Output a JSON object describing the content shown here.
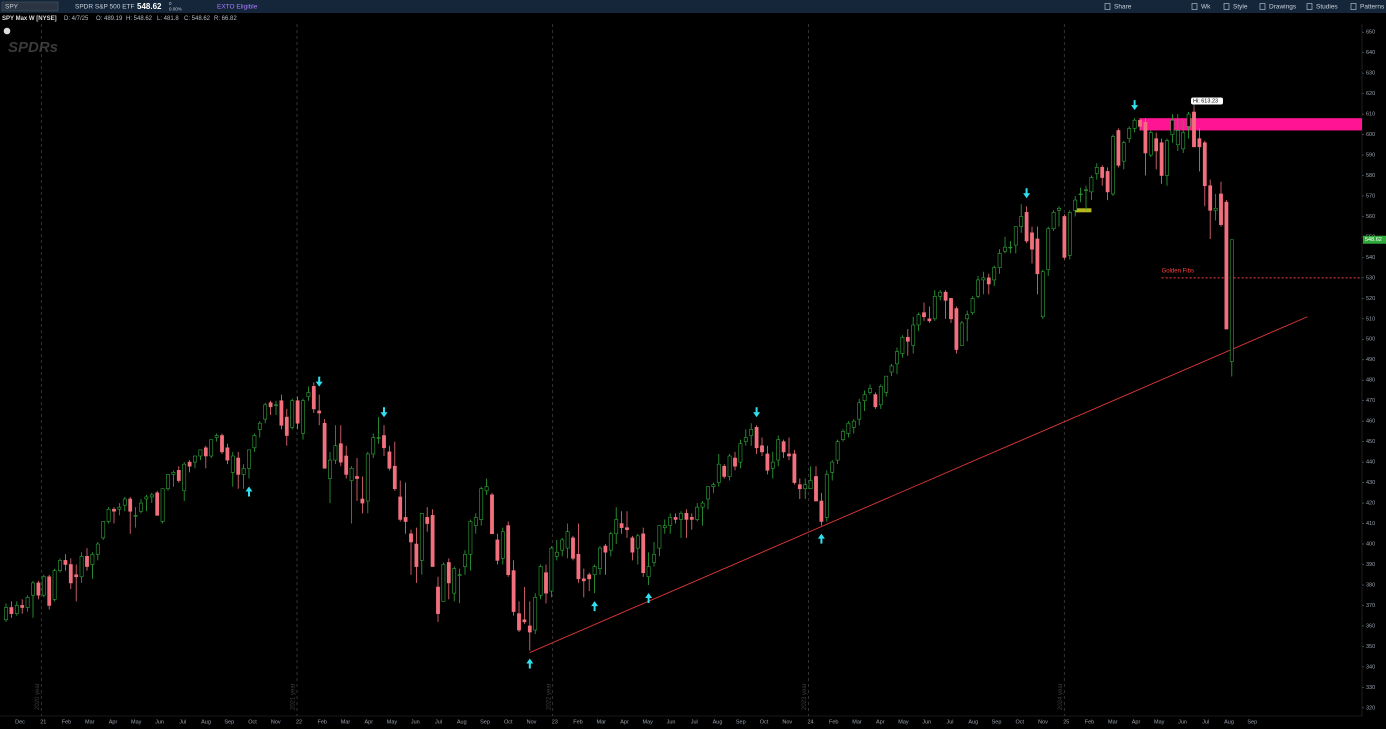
{
  "header": {
    "symbol": "SPY",
    "description": "SPDR S&P 500 ETF",
    "last": "548.62",
    "change": "0",
    "change_pct": "0.00%",
    "badge": "EXTO Eligible",
    "tools": [
      "Share",
      "Wk",
      "Style",
      "Drawings",
      "Studies",
      "Patterns"
    ]
  },
  "info_bar": {
    "title": "SPY Max W [NYSE]",
    "fields": [
      "D: 4/7/25",
      "O: 489.19",
      "H: 548.62",
      "L: 481.8",
      "C: 548.62",
      "R: 66.82"
    ]
  },
  "logo": "SPDRs",
  "chart_data": {
    "type": "candlestick",
    "up_color": "#2fa83a",
    "down_color": "#f2707e",
    "ylim": [
      316,
      654
    ],
    "yticks": [
      320,
      330,
      340,
      350,
      360,
      370,
      380,
      390,
      400,
      410,
      420,
      430,
      440,
      450,
      460,
      470,
      480,
      490,
      500,
      510,
      520,
      530,
      540,
      550,
      560,
      570,
      580,
      590,
      600,
      610,
      620,
      630,
      640,
      650
    ],
    "categories": [
      "Dec",
      "21",
      "Feb",
      "Mar",
      "Apr",
      "May",
      "Jun",
      "Jul",
      "Aug",
      "Sep",
      "Oct",
      "Nov",
      "22",
      "Feb",
      "Mar",
      "Apr",
      "May",
      "Jun",
      "Jul",
      "Aug",
      "Sep",
      "Oct",
      "Nov",
      "23",
      "Feb",
      "Mar",
      "Apr",
      "May",
      "Jun",
      "Jul",
      "Aug",
      "Sep",
      "Oct",
      "Nov",
      "24",
      "Feb",
      "Mar",
      "Apr",
      "May",
      "Jun",
      "Jul",
      "Aug",
      "Sep",
      "Oct",
      "Nov",
      "25",
      "Feb",
      "Mar",
      "Apr",
      "May",
      "Jun",
      "Jul",
      "Aug",
      "Sep"
    ],
    "year_labels": [
      "2020 year",
      "2021 year",
      "2022 year",
      "2023 year",
      "2024 year"
    ],
    "candles": [
      [
        363,
        371,
        362,
        369
      ],
      [
        369,
        372,
        364,
        366
      ],
      [
        366,
        372,
        365,
        370
      ],
      [
        370,
        373,
        366,
        369
      ],
      [
        369,
        375,
        367,
        374
      ],
      [
        375,
        382,
        364,
        381
      ],
      [
        381,
        382,
        373,
        375
      ],
      [
        375,
        385,
        374,
        384
      ],
      [
        384,
        385,
        368,
        370
      ],
      [
        373,
        388,
        372,
        387
      ],
      [
        387,
        393,
        386,
        392
      ],
      [
        392,
        395,
        387,
        390
      ],
      [
        390,
        393,
        378,
        381
      ],
      [
        385,
        390,
        372,
        384
      ],
      [
        384,
        396,
        381,
        394
      ],
      [
        394,
        398,
        387,
        389
      ],
      [
        390,
        396,
        383,
        395
      ],
      [
        395,
        401,
        392,
        400
      ],
      [
        403,
        411,
        402,
        411
      ],
      [
        411,
        418,
        410,
        417
      ],
      [
        417,
        418,
        410,
        416
      ],
      [
        417,
        420,
        414,
        418
      ],
      [
        419,
        423,
        416,
        422
      ],
      [
        422,
        423,
        405,
        416
      ],
      [
        414,
        418,
        408,
        414
      ],
      [
        416,
        422,
        415,
        420
      ],
      [
        422,
        424,
        416,
        423
      ],
      [
        423,
        425,
        420,
        424
      ],
      [
        425,
        426,
        414,
        414
      ],
      [
        411,
        427,
        410,
        427
      ],
      [
        427,
        434,
        426,
        434
      ],
      [
        434,
        436,
        428,
        435
      ],
      [
        436,
        438,
        430,
        431
      ],
      [
        426,
        440,
        421,
        439
      ],
      [
        440,
        441,
        435,
        438
      ],
      [
        440,
        443,
        437,
        443
      ],
      [
        443,
        446,
        441,
        446
      ],
      [
        447,
        448,
        437,
        443
      ],
      [
        443,
        451,
        442,
        451
      ],
      [
        452,
        454,
        450,
        453
      ],
      [
        453,
        454,
        444,
        445
      ],
      [
        447,
        449,
        439,
        441
      ],
      [
        435,
        445,
        428,
        443
      ],
      [
        442,
        445,
        427,
        434
      ],
      [
        434,
        439,
        427,
        437
      ],
      [
        437,
        446,
        432,
        446
      ],
      [
        447,
        454,
        445,
        453
      ],
      [
        456,
        460,
        452,
        459
      ],
      [
        461,
        469,
        459,
        468
      ],
      [
        469,
        470,
        463,
        467
      ],
      [
        468,
        470,
        463,
        468
      ],
      [
        470,
        473,
        456,
        458
      ],
      [
        462,
        466,
        448,
        453
      ],
      [
        457,
        471,
        456,
        470
      ],
      [
        470,
        472,
        456,
        459
      ],
      [
        454,
        471,
        451,
        470
      ],
      [
        472,
        477,
        470,
        474
      ],
      [
        477,
        479,
        464,
        466
      ],
      [
        465,
        473,
        458,
        464
      ],
      [
        459,
        461,
        437,
        437
      ],
      [
        432,
        445,
        420,
        441
      ],
      [
        441,
        458,
        439,
        448
      ],
      [
        449,
        458,
        438,
        440
      ],
      [
        443,
        448,
        432,
        434
      ],
      [
        431,
        438,
        410,
        437
      ],
      [
        433,
        442,
        421,
        432
      ],
      [
        422,
        433,
        415,
        420
      ],
      [
        421,
        445,
        415,
        444
      ],
      [
        444,
        454,
        442,
        452
      ],
      [
        452,
        462,
        449,
        452
      ],
      [
        453,
        458,
        443,
        447
      ],
      [
        445,
        448,
        436,
        437
      ],
      [
        438,
        450,
        426,
        427
      ],
      [
        423,
        431,
        411,
        412
      ],
      [
        413,
        430,
        405,
        411
      ],
      [
        405,
        407,
        385,
        401
      ],
      [
        400,
        408,
        381,
        389
      ],
      [
        392,
        415,
        385,
        415
      ],
      [
        413,
        418,
        406,
        410
      ],
      [
        414,
        417,
        389,
        389
      ],
      [
        379,
        384,
        362,
        366
      ],
      [
        372,
        391,
        372,
        390
      ],
      [
        391,
        393,
        373,
        381
      ],
      [
        376,
        389,
        372,
        388
      ],
      [
        385,
        388,
        371,
        385
      ],
      [
        389,
        397,
        385,
        395
      ],
      [
        395,
        412,
        387,
        411
      ],
      [
        409,
        415,
        405,
        413
      ],
      [
        412,
        428,
        409,
        427
      ],
      [
        426,
        432,
        424,
        428
      ],
      [
        424,
        425,
        405,
        405
      ],
      [
        402,
        405,
        390,
        392
      ],
      [
        393,
        408,
        390,
        406
      ],
      [
        409,
        411,
        384,
        385
      ],
      [
        387,
        392,
        365,
        367
      ],
      [
        366,
        372,
        357,
        358
      ],
      [
        363,
        379,
        361,
        362
      ],
      [
        360,
        372,
        348,
        357
      ],
      [
        358,
        376,
        356,
        374
      ],
      [
        375,
        390,
        373,
        389
      ],
      [
        386,
        390,
        371,
        376
      ],
      [
        377,
        399,
        374,
        398
      ],
      [
        394,
        402,
        392,
        396
      ],
      [
        397,
        403,
        394,
        402
      ],
      [
        398,
        410,
        393,
        406
      ],
      [
        403,
        404,
        392,
        393
      ],
      [
        395,
        410,
        381,
        383
      ],
      [
        383,
        388,
        374,
        382
      ],
      [
        385,
        386,
        377,
        383
      ],
      [
        385,
        390,
        376,
        389
      ],
      [
        388,
        399,
        385,
        398
      ],
      [
        399,
        400,
        385,
        396
      ],
      [
        397,
        406,
        394,
        405
      ],
      [
        405,
        418,
        400,
        412
      ],
      [
        410,
        416,
        405,
        408
      ],
      [
        408,
        416,
        403,
        407
      ],
      [
        403,
        404,
        392,
        396
      ],
      [
        398,
        405,
        390,
        404
      ],
      [
        405,
        408,
        384,
        386
      ],
      [
        384,
        396,
        380,
        389
      ],
      [
        391,
        401,
        389,
        395
      ],
      [
        398,
        409,
        394,
        409
      ],
      [
        408,
        412,
        405,
        409
      ],
      [
        409,
        415,
        405,
        413
      ],
      [
        413,
        415,
        410,
        412
      ],
      [
        412,
        416,
        403,
        415
      ],
      [
        415,
        417,
        403,
        412
      ],
      [
        413,
        415,
        407,
        412
      ],
      [
        412,
        420,
        411,
        418
      ],
      [
        418,
        421,
        409,
        420
      ],
      [
        422,
        428,
        417,
        428
      ],
      [
        428,
        430,
        425,
        429
      ],
      [
        430,
        444,
        428,
        439
      ],
      [
        438,
        439,
        432,
        433
      ],
      [
        433,
        444,
        431,
        443
      ],
      [
        442,
        445,
        436,
        438
      ],
      [
        440,
        451,
        437,
        449
      ],
      [
        450,
        456,
        448,
        452
      ],
      [
        453,
        459,
        448,
        456
      ],
      [
        457,
        458,
        444,
        447
      ],
      [
        448,
        452,
        443,
        445
      ],
      [
        444,
        448,
        434,
        436
      ],
      [
        437,
        445,
        432,
        440
      ],
      [
        441,
        453,
        438,
        451
      ],
      [
        450,
        451,
        442,
        445
      ],
      [
        444,
        452,
        441,
        443
      ],
      [
        444,
        446,
        429,
        430
      ],
      [
        429,
        432,
        422,
        427
      ],
      [
        427,
        432,
        422,
        429
      ],
      [
        427,
        438,
        427,
        431
      ],
      [
        433,
        438,
        421,
        421
      ],
      [
        421,
        425,
        409,
        411
      ],
      [
        413,
        436,
        411,
        434
      ],
      [
        435,
        441,
        431,
        440
      ],
      [
        441,
        451,
        439,
        450
      ],
      [
        451,
        456,
        450,
        455
      ],
      [
        454,
        460,
        452,
        459
      ],
      [
        457,
        461,
        454,
        460
      ],
      [
        461,
        471,
        458,
        469
      ],
      [
        470,
        475,
        465,
        473
      ],
      [
        474,
        478,
        473,
        476
      ],
      [
        473,
        474,
        466,
        467
      ],
      [
        468,
        478,
        466,
        477
      ],
      [
        474,
        482,
        472,
        482
      ],
      [
        484,
        488,
        482,
        487
      ],
      [
        488,
        496,
        483,
        494
      ],
      [
        493,
        502,
        491,
        501
      ],
      [
        501,
        505,
        492,
        499
      ],
      [
        497,
        511,
        493,
        507
      ],
      [
        507,
        513,
        504,
        512
      ],
      [
        513,
        518,
        509,
        511
      ],
      [
        510,
        516,
        508,
        509
      ],
      [
        510,
        524,
        509,
        521
      ],
      [
        521,
        524,
        519,
        523
      ],
      [
        523,
        524,
        510,
        519
      ],
      [
        520,
        520,
        508,
        510
      ],
      [
        515,
        516,
        493,
        495
      ],
      [
        497,
        509,
        497,
        508
      ],
      [
        510,
        514,
        499,
        512
      ],
      [
        513,
        521,
        512,
        520
      ],
      [
        521,
        531,
        520,
        529
      ],
      [
        529,
        533,
        522,
        530
      ],
      [
        530,
        532,
        522,
        527
      ],
      [
        529,
        536,
        526,
        535
      ],
      [
        535,
        544,
        532,
        542
      ],
      [
        543,
        550,
        542,
        545
      ],
      [
        545,
        548,
        542,
        545
      ],
      [
        546,
        555,
        542,
        555
      ],
      [
        555,
        566,
        552,
        560
      ],
      [
        562,
        565,
        547,
        548
      ],
      [
        552,
        555,
        537,
        544
      ],
      [
        549,
        555,
        522,
        532
      ],
      [
        511,
        534,
        510,
        533
      ],
      [
        534,
        555,
        531,
        554
      ],
      [
        554,
        563,
        553,
        562
      ],
      [
        563,
        565,
        555,
        564
      ],
      [
        560,
        561,
        539,
        540
      ],
      [
        541,
        563,
        539,
        562
      ],
      [
        563,
        570,
        560,
        568
      ],
      [
        571,
        574,
        567,
        571
      ],
      [
        573,
        575,
        563,
        573
      ],
      [
        572,
        580,
        568,
        579
      ],
      [
        581,
        586,
        578,
        584
      ],
      [
        584,
        585,
        575,
        579
      ],
      [
        582,
        584,
        568,
        572
      ],
      [
        571,
        600,
        570,
        599
      ],
      [
        602,
        603,
        584,
        585
      ],
      [
        587,
        597,
        583,
        596
      ],
      [
        598,
        604,
        596,
        603
      ],
      [
        603,
        608,
        601,
        607
      ],
      [
        607,
        608,
        602,
        604
      ],
      [
        606,
        608,
        580,
        591
      ],
      [
        590,
        602,
        589,
        601
      ],
      [
        598,
        601,
        583,
        592
      ],
      [
        596,
        598,
        576,
        580
      ],
      [
        580,
        598,
        575,
        597
      ],
      [
        600,
        610,
        596,
        607
      ],
      [
        595,
        610,
        592,
        602
      ],
      [
        593,
        607,
        591,
        601
      ],
      [
        604,
        611,
        598,
        610
      ],
      [
        611,
        613.23,
        594,
        594
      ],
      [
        598,
        603,
        582,
        594
      ],
      [
        596,
        597,
        565,
        575
      ],
      [
        575,
        578,
        549,
        563
      ],
      [
        563,
        571,
        558,
        564
      ],
      [
        571,
        577,
        555,
        556
      ],
      [
        567,
        568,
        505,
        505
      ],
      [
        489.19,
        548.62,
        481.8,
        548.62
      ]
    ],
    "arrows": {
      "color": "#30e0f0",
      "down": [
        58,
        70,
        139,
        189,
        209
      ],
      "up": [
        45,
        97,
        109,
        119,
        151
      ]
    },
    "trendline": {
      "color": "#e03838",
      "x": [
        97,
        241
      ],
      "values": [
        347,
        511
      ]
    },
    "zone": {
      "color": "#ff1493",
      "from": 210,
      "low": 602,
      "high": 608
    },
    "highlight": {
      "color": "#b8b81e",
      "from": 198,
      "to": 201,
      "value": 563
    },
    "fib": {
      "text": "Golden Fibs",
      "color": "#ff4040",
      "from": 214,
      "value": 530
    },
    "hi_label": {
      "text": "Hi: 613.23",
      "index": 220
    }
  }
}
